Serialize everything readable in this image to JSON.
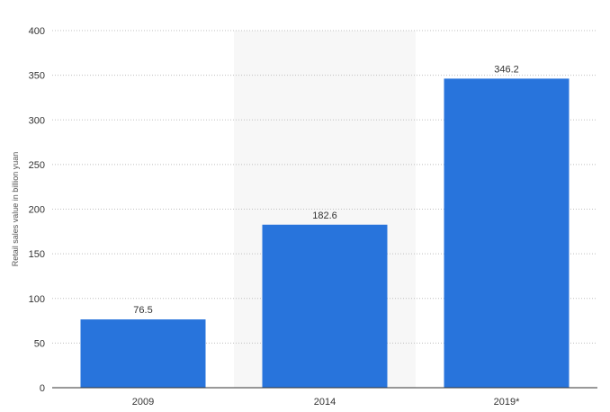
{
  "chart_data": {
    "type": "bar",
    "categories": [
      "2009",
      "2014",
      "2019*"
    ],
    "values": [
      76.5,
      182.6,
      346.2
    ],
    "value_labels": [
      "76.5",
      "182.6",
      "346.2"
    ],
    "title": "",
    "xlabel": "",
    "ylabel": "Retail sales value in billion yuan",
    "ylim": [
      0,
      400
    ],
    "yticks": [
      0,
      50,
      100,
      150,
      200,
      250,
      300,
      350,
      400
    ],
    "grid": true,
    "highlighted_category": "2014",
    "colors": {
      "bar": "#2874dc",
      "highlight_band": "#f7f7f7"
    }
  }
}
